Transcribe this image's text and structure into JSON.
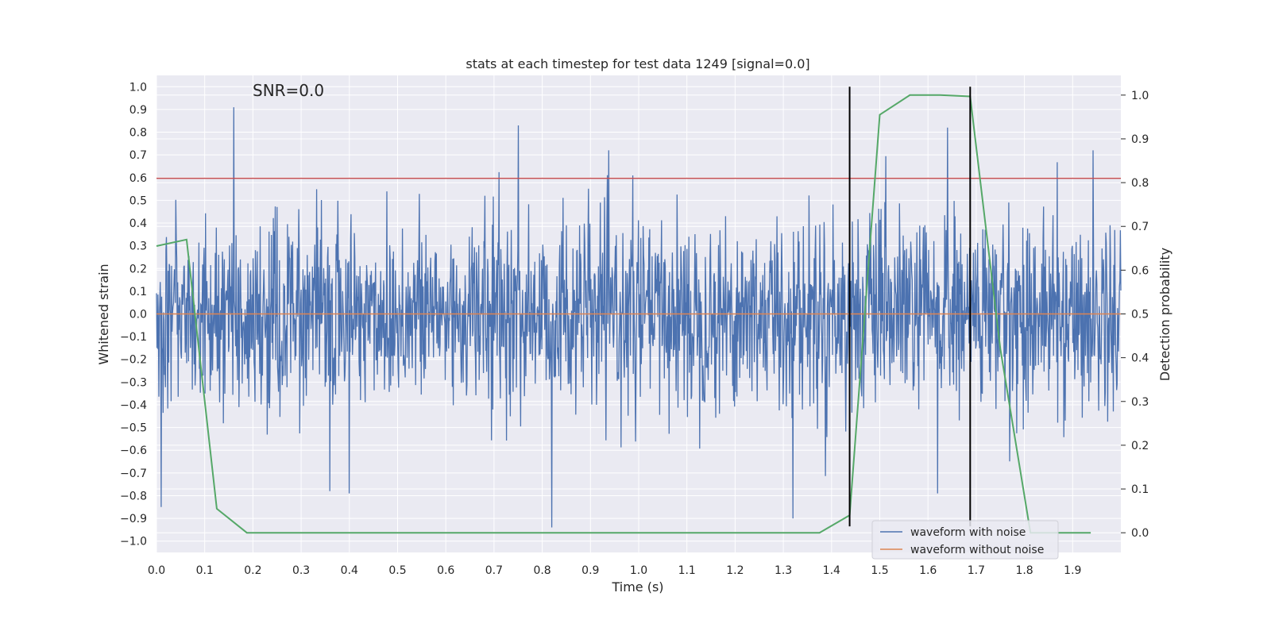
{
  "chart_data": {
    "type": "line",
    "title": "stats at each timestep for test data 1249 [signal=0.0]",
    "xlabel": "Time (s)",
    "ylabel": "Whitened strain",
    "ylabel_right": "Detection probability",
    "annotation": "SNR=0.0",
    "xlim": [
      0.0,
      2.0
    ],
    "ylim": [
      -1.05,
      1.05
    ],
    "ylim_right": [
      -0.045,
      1.045
    ],
    "x_ticks": [
      0.0,
      0.1,
      0.2,
      0.3,
      0.4,
      0.5,
      0.6,
      0.7,
      0.8,
      0.9,
      1.0,
      1.1,
      1.2,
      1.3,
      1.4,
      1.5,
      1.6,
      1.7,
      1.8,
      1.9
    ],
    "x_tick_labels": [
      "0.0",
      "0.1",
      "0.2",
      "0.3",
      "0.4",
      "0.5",
      "0.6",
      "0.7",
      "0.8",
      "0.9",
      "1.0",
      "1.1",
      "1.2",
      "1.3",
      "1.4",
      "1.5",
      "1.6",
      "1.7",
      "1.8",
      "1.9"
    ],
    "y_ticks": [
      1.0,
      0.9,
      0.8,
      0.7,
      0.6,
      0.5,
      0.4,
      0.3,
      0.2,
      0.1,
      0.0,
      -0.1,
      -0.2,
      -0.3,
      -0.4,
      -0.5,
      -0.6,
      -0.7,
      -0.8,
      -0.9,
      -1.0
    ],
    "y_tick_labels": [
      "1.0",
      "0.9",
      "0.8",
      "0.7",
      "0.6",
      "0.5",
      "0.4",
      "0.3",
      "0.2",
      "0.1",
      "0.0",
      "−0.1",
      "−0.2",
      "−0.3",
      "−0.4",
      "−0.5",
      "−0.6",
      "−0.7",
      "−0.8",
      "−0.9",
      "−1.0"
    ],
    "y_right_ticks": [
      1.0,
      0.9,
      0.8,
      0.7,
      0.6,
      0.5,
      0.4,
      0.3,
      0.2,
      0.1,
      0.0
    ],
    "y_right_tick_labels": [
      "1.0",
      "0.9",
      "0.8",
      "0.7",
      "0.6",
      "0.5",
      "0.4",
      "0.3",
      "0.2",
      "0.1",
      "0.0"
    ],
    "grid": true,
    "legend_placement": "lower-right",
    "series": [
      {
        "name": "waveform with noise",
        "color": "#4c72b0",
        "kind": "noise",
        "x_range": [
          0.0,
          2.0
        ],
        "sample_count": 2048,
        "amplitude_std": 0.21,
        "spikes": [
          [
            0.16,
            0.91
          ],
          [
            0.75,
            0.83
          ],
          [
            0.82,
            -0.94
          ],
          [
            1.64,
            0.82
          ],
          [
            1.32,
            -0.9
          ],
          [
            0.01,
            -0.85
          ],
          [
            1.62,
            -0.79
          ],
          [
            0.4,
            -0.79
          ],
          [
            0.36,
            -0.78
          ]
        ]
      },
      {
        "name": "waveform without noise",
        "color": "#dd8452",
        "kind": "line",
        "x": [
          0.0,
          2.0
        ],
        "y": [
          0.0,
          0.0
        ]
      }
    ],
    "probability_series": {
      "color": "#55a868",
      "axis": "right",
      "x": [
        0.0,
        0.0625,
        0.125,
        0.1875,
        1.375,
        1.4375,
        1.5,
        1.5625,
        1.625,
        1.6875,
        1.75,
        1.8125,
        1.875,
        1.9375
      ],
      "y": [
        0.655,
        0.67,
        0.055,
        0.0,
        0.0,
        0.04,
        0.955,
        1.0,
        1.0,
        0.997,
        0.42,
        0.0,
        0.0,
        0.0
      ]
    },
    "threshold": {
      "y": 0.81,
      "color": "#c44e52"
    },
    "vertical_markers": [
      {
        "x": 1.4375,
        "y_from": -0.935,
        "y_to": 1.0,
        "color": "#000000"
      },
      {
        "x": 1.6875,
        "y_from": -0.935,
        "y_to": 1.0,
        "color": "#000000"
      }
    ],
    "style": {
      "plot_background": "#eaeaf2",
      "grid_color": "#ffffff"
    }
  }
}
